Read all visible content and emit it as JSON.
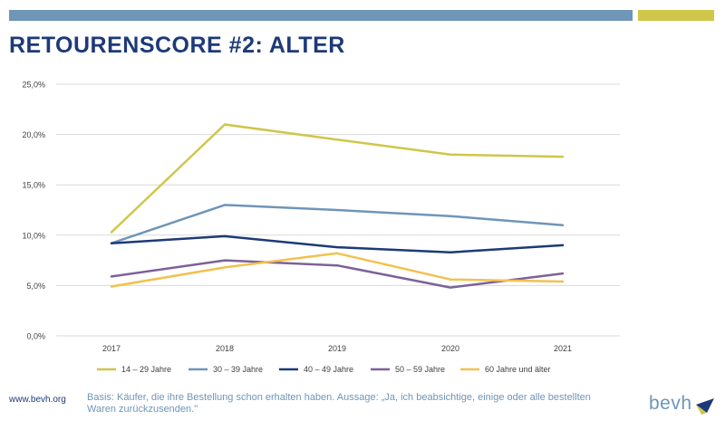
{
  "page": {
    "title": "RETOURENSCORE #2: ALTER",
    "footer_url": "www.bevh.org",
    "footer_note": "Basis: Käufer, die ihre Bestellung schon erhalten haben. Aussage: „Ja, ich beabsichtige, einige oder alle bestellten Waren zurückzusenden.\"",
    "logo_text": "bevh"
  },
  "colors": {
    "bar_blue": "#6f95b8",
    "bar_yellow": "#cfc64a",
    "title": "#1d3a78"
  },
  "chart_data": {
    "type": "line",
    "title": "",
    "xlabel": "",
    "ylabel": "",
    "categories": [
      "2017",
      "2018",
      "2019",
      "2020",
      "2021"
    ],
    "y_ticks": [
      0,
      5,
      10,
      15,
      20,
      25
    ],
    "y_tick_labels": [
      "0,0%",
      "5,0%",
      "10,0%",
      "15,0%",
      "20,0%",
      "25,0%"
    ],
    "ylim": [
      0,
      25
    ],
    "grid": true,
    "legend_position": "bottom",
    "series": [
      {
        "name": "14 – 29 Jahre",
        "color": "#cfc64a",
        "values": [
          10.3,
          21.0,
          19.5,
          18.0,
          17.8
        ]
      },
      {
        "name": "30 – 39 Jahre",
        "color": "#6f95b8",
        "values": [
          9.2,
          13.0,
          12.5,
          11.9,
          11.0
        ]
      },
      {
        "name": "40 – 49 Jahre",
        "color": "#1d3a78",
        "values": [
          9.2,
          9.9,
          8.8,
          8.3,
          9.0
        ]
      },
      {
        "name": "50 – 59 Jahre",
        "color": "#7d6199",
        "values": [
          5.9,
          7.5,
          7.0,
          4.8,
          6.2
        ]
      },
      {
        "name": "60 Jahre und älter",
        "color": "#f2c14e",
        "values": [
          4.9,
          6.8,
          8.2,
          5.6,
          5.4
        ]
      }
    ]
  }
}
